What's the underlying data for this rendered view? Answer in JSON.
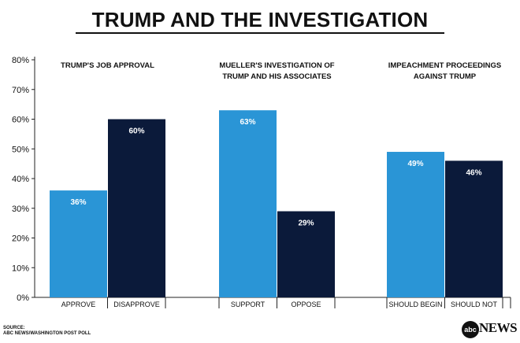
{
  "title": "TRUMP AND THE INVESTIGATION",
  "source_label": "SOURCE:",
  "source": "ABC NEWS/WASHINGTON POST POLL",
  "logo": {
    "mark": "abc",
    "word": "NEWS"
  },
  "colors": {
    "light_blue": "#2a95d6",
    "navy": "#0b1a3a",
    "axis": "#222222",
    "tick_text": "#111111"
  },
  "chart_data": {
    "type": "bar",
    "title": "TRUMP AND THE INVESTIGATION",
    "ylim": [
      0,
      80
    ],
    "yticks": [
      0,
      10,
      20,
      30,
      40,
      50,
      60,
      70,
      80
    ],
    "ytick_labels": [
      "0%",
      "10%",
      "20%",
      "30%",
      "40%",
      "50%",
      "60%",
      "70%",
      "80%"
    ],
    "grid": false,
    "groups": [
      {
        "title_lines": [
          "TRUMP'S JOB APPROVAL"
        ],
        "bars": [
          {
            "label": "APPROVE",
            "value": 36,
            "value_label": "36%",
            "color": "#2a95d6"
          },
          {
            "label": "DISAPPROVE",
            "value": 60,
            "value_label": "60%",
            "color": "#0b1a3a"
          }
        ]
      },
      {
        "title_lines": [
          "MUELLER'S INVESTIGATION OF",
          "TRUMP AND HIS ASSOCIATES"
        ],
        "bars": [
          {
            "label": "SUPPORT",
            "value": 63,
            "value_label": "63%",
            "color": "#2a95d6"
          },
          {
            "label": "OPPOSE",
            "value": 29,
            "value_label": "29%",
            "color": "#0b1a3a"
          }
        ]
      },
      {
        "title_lines": [
          "IMPEACHMENT PROCEEDINGS",
          "AGAINST TRUMP"
        ],
        "bars": [
          {
            "label": "SHOULD BEGIN",
            "value": 49,
            "value_label": "49%",
            "color": "#2a95d6"
          },
          {
            "label": "SHOULD NOT",
            "value": 46,
            "value_label": "46%",
            "color": "#0b1a3a"
          }
        ]
      }
    ]
  }
}
